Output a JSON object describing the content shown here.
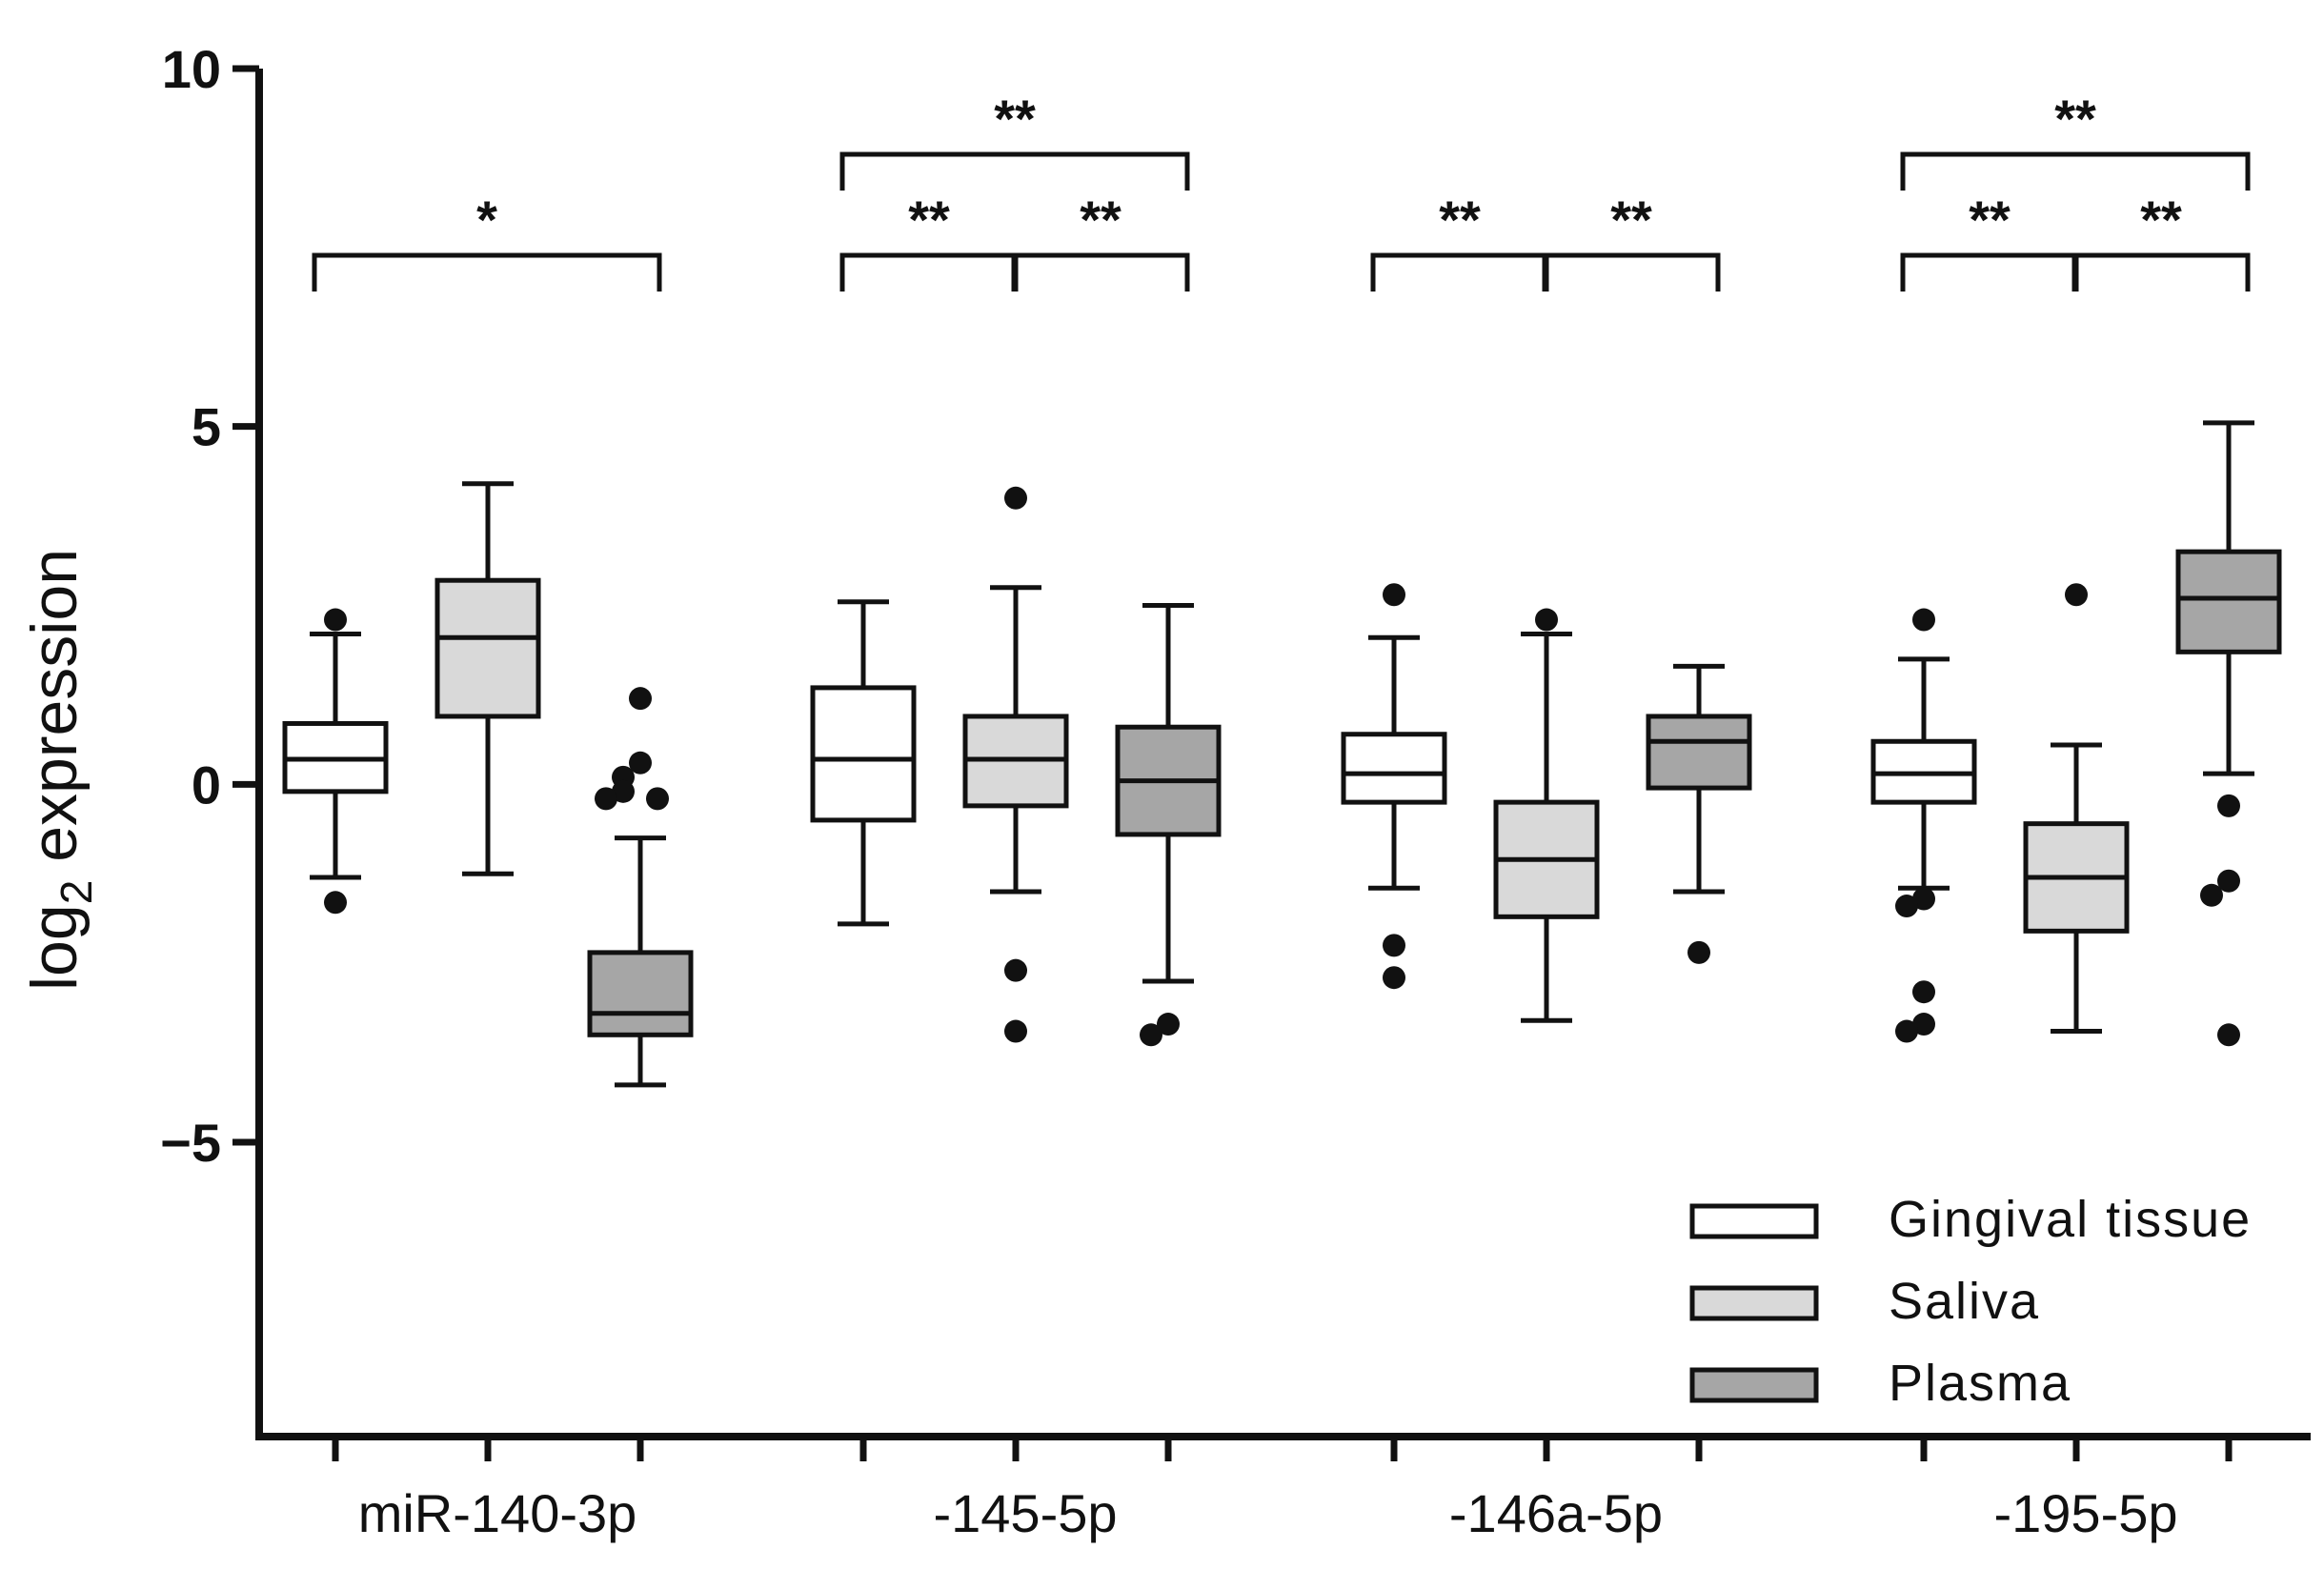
{
  "chart_data": {
    "type": "box",
    "title": "",
    "ylabel_main": "log",
    "ylabel_sub": "2",
    "ylabel_rest": " expression",
    "xlabel": "",
    "ylim": [
      -9,
      10
    ],
    "yticks": [
      10,
      5,
      0,
      -5
    ],
    "ytick_labels": [
      "10",
      "5",
      "0",
      "−5"
    ],
    "series_names": [
      "Gingival tissue",
      "Saliva",
      "Plasma"
    ],
    "colors": {
      "Gingival tissue": "#ffffff",
      "Saliva": "#d9d9d9",
      "Plasma": "#a6a6a6",
      "stroke": "#111111"
    },
    "categories": [
      "miR-140-3p",
      "-145-5p",
      "-146a-5p",
      "-195-5p"
    ],
    "groups": [
      {
        "category": "miR-140-3p",
        "boxes": [
          {
            "series": "Gingival tissue",
            "whisker_low": -1.3,
            "q1": -0.1,
            "median": 0.35,
            "q3": 0.85,
            "whisker_high": 2.1,
            "outliers": [
              2.3,
              -1.65
            ]
          },
          {
            "series": "Saliva",
            "whisker_low": -1.25,
            "q1": 0.95,
            "median": 2.05,
            "q3": 2.85,
            "whisker_high": 4.2,
            "outliers": []
          },
          {
            "series": "Plasma",
            "whisker_low": -4.2,
            "q1": -3.5,
            "median": -3.2,
            "q3": -2.35,
            "whisker_high": -0.75,
            "outliers": [
              1.2,
              0.3,
              0.1,
              -0.1,
              -0.2,
              -0.2
            ]
          }
        ],
        "significance": [
          {
            "from": 0,
            "to": 2,
            "label": "*",
            "level": 1
          }
        ]
      },
      {
        "category": "-145-5p",
        "boxes": [
          {
            "series": "Gingival tissue",
            "whisker_low": -1.95,
            "q1": -0.5,
            "median": 0.35,
            "q3": 1.35,
            "whisker_high": 2.55,
            "outliers": []
          },
          {
            "series": "Saliva",
            "whisker_low": -1.5,
            "q1": -0.3,
            "median": 0.35,
            "q3": 0.95,
            "whisker_high": 2.75,
            "outliers": [
              4.0,
              -2.6,
              -3.45
            ]
          },
          {
            "series": "Plasma",
            "whisker_low": -2.75,
            "q1": -0.7,
            "median": 0.05,
            "q3": 0.8,
            "whisker_high": 2.5,
            "outliers": [
              -3.35,
              -3.5
            ]
          }
        ],
        "significance": [
          {
            "from": 0,
            "to": 1,
            "label": "**",
            "level": 1
          },
          {
            "from": 1,
            "to": 2,
            "label": "**",
            "level": 1
          },
          {
            "from": 0,
            "to": 2,
            "label": "**",
            "level": 2
          }
        ]
      },
      {
        "category": "-146a-5p",
        "boxes": [
          {
            "series": "Gingival tissue",
            "whisker_low": -1.45,
            "q1": -0.25,
            "median": 0.15,
            "q3": 0.7,
            "whisker_high": 2.05,
            "outliers": [
              2.65,
              -2.25,
              -2.7
            ]
          },
          {
            "series": "Saliva",
            "whisker_low": -3.3,
            "q1": -1.85,
            "median": -1.05,
            "q3": -0.25,
            "whisker_high": 2.1,
            "outliers": [
              2.3
            ]
          },
          {
            "series": "Plasma",
            "whisker_low": -1.5,
            "q1": -0.05,
            "median": 0.6,
            "q3": 0.95,
            "whisker_high": 1.65,
            "outliers": [
              -2.35
            ]
          }
        ],
        "significance": [
          {
            "from": 0,
            "to": 1,
            "label": "**",
            "level": 1
          },
          {
            "from": 1,
            "to": 2,
            "label": "**",
            "level": 1
          }
        ]
      },
      {
        "category": "-195-5p",
        "boxes": [
          {
            "series": "Gingival tissue",
            "whisker_low": -1.45,
            "q1": -0.25,
            "median": 0.15,
            "q3": 0.6,
            "whisker_high": 1.75,
            "outliers": [
              2.3,
              -1.6,
              -1.7,
              -2.9,
              -3.35,
              -3.45
            ]
          },
          {
            "series": "Saliva",
            "whisker_low": -3.45,
            "q1": -2.05,
            "median": -1.3,
            "q3": -0.55,
            "whisker_high": 0.55,
            "outliers": [
              2.65
            ]
          },
          {
            "series": "Plasma",
            "whisker_low": 0.15,
            "q1": 1.85,
            "median": 2.6,
            "q3": 3.25,
            "whisker_high": 5.05,
            "outliers": [
              -0.3,
              -1.35,
              -1.55,
              -3.5
            ]
          }
        ],
        "significance": [
          {
            "from": 0,
            "to": 1,
            "label": "**",
            "level": 1
          },
          {
            "from": 1,
            "to": 2,
            "label": "**",
            "level": 1
          },
          {
            "from": 0,
            "to": 2,
            "label": "**",
            "level": 2
          }
        ]
      }
    ],
    "legend_position": "bottom-right",
    "grid": false
  }
}
